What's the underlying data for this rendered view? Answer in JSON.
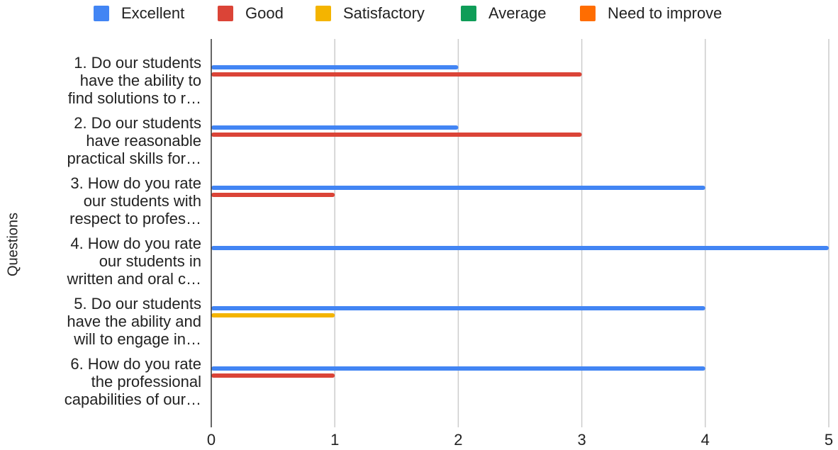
{
  "chart_data": {
    "type": "bar",
    "orientation": "horizontal",
    "title": "",
    "xlabel": "",
    "ylabel": "Questions",
    "xlim": [
      0,
      5
    ],
    "x_ticks": [
      0,
      1,
      2,
      3,
      4,
      5
    ],
    "grid": "vertical",
    "legend_position": "top",
    "categories": [
      [
        "1. Do our students",
        "have the ability to",
        "find solutions to r…"
      ],
      [
        "2. Do our students",
        "have reasonable",
        "practical skills for…"
      ],
      [
        "3. How do you rate",
        "our students with",
        "respect to profes…"
      ],
      [
        "4. How do you rate",
        "our students in",
        "written and oral c…"
      ],
      [
        "5. Do our students",
        "have the ability and",
        "will to engage in…"
      ],
      [
        "6. How do you rate",
        "the professional",
        "capabilities of our…"
      ]
    ],
    "series": [
      {
        "name": "Excellent",
        "color": "#4285f4",
        "values": [
          2,
          2,
          4,
          5,
          4,
          4
        ]
      },
      {
        "name": "Good",
        "color": "#db4437",
        "values": [
          3,
          3,
          1,
          0,
          0,
          1
        ]
      },
      {
        "name": "Satisfactory",
        "color": "#f4b400",
        "values": [
          0,
          0,
          0,
          0,
          1,
          0
        ]
      },
      {
        "name": "Average",
        "color": "#0f9d58",
        "values": [
          0,
          0,
          0,
          0,
          0,
          0
        ]
      },
      {
        "name": "Need to improve",
        "color": "#ff6d01",
        "values": [
          0,
          0,
          0,
          0,
          0,
          0
        ]
      }
    ]
  }
}
